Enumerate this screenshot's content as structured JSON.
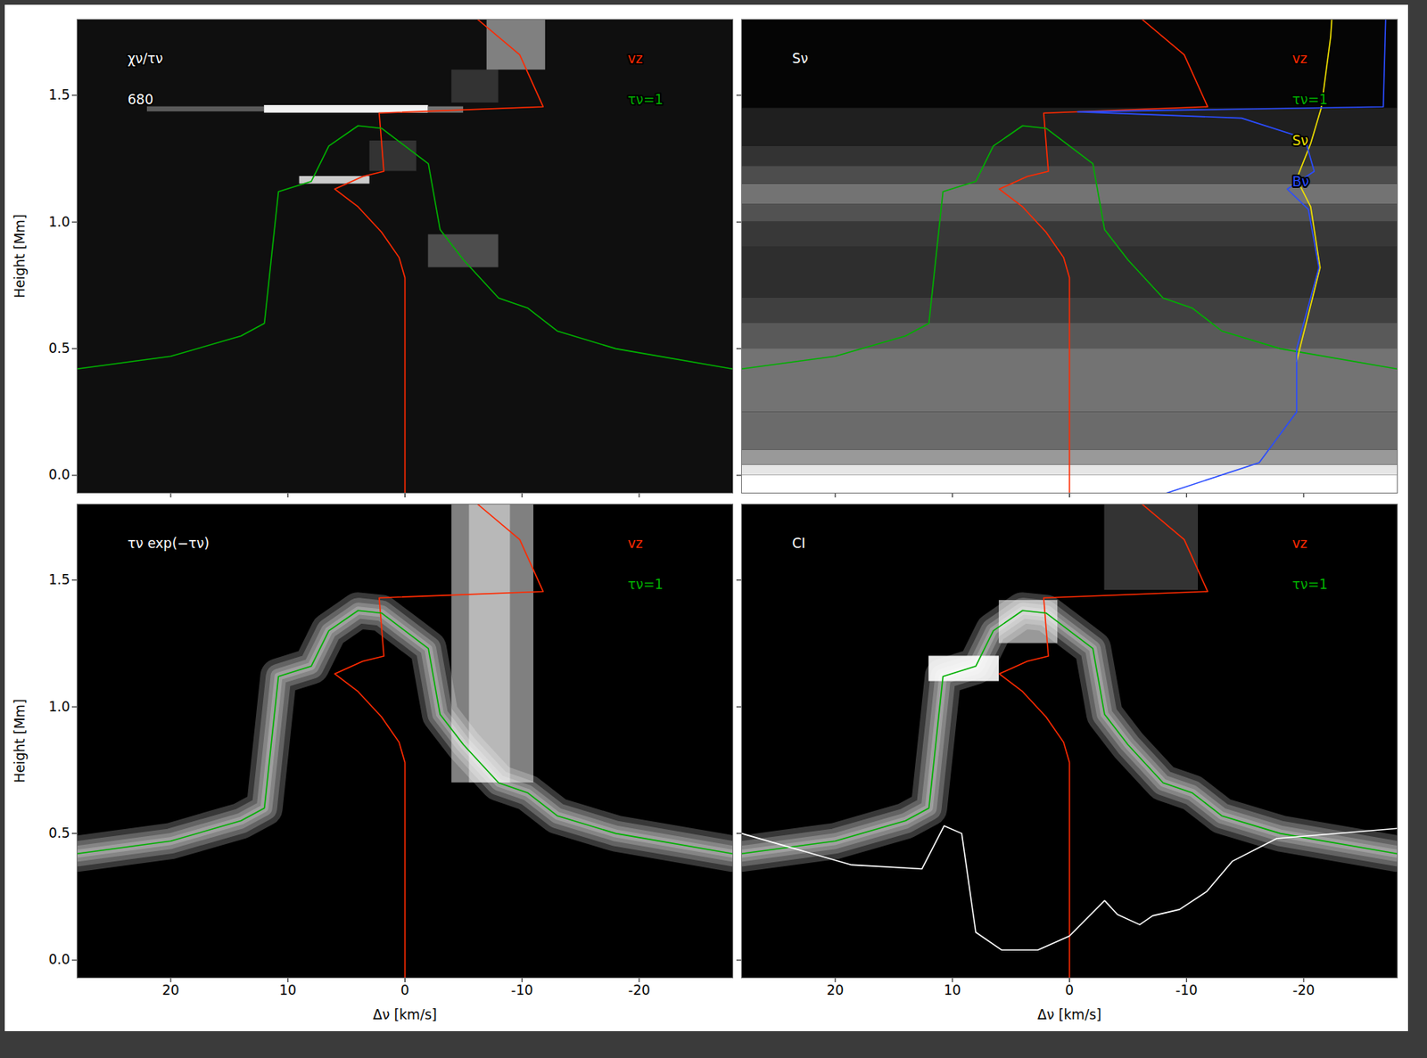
{
  "chart_data": [
    {
      "type": "line",
      "title": "χν/τν",
      "annotations": [
        "680"
      ],
      "y_label": "Height [Mm]",
      "tick_labels": "y",
      "legend": "top-right",
      "xlim": [
        28,
        -28
      ],
      "ylim": [
        -0.07,
        1.8
      ],
      "xticks": [
        20,
        10,
        0,
        -10,
        -20
      ],
      "yticks": [
        {
          "value": 0,
          "label": "0.0"
        },
        {
          "value": 0.5,
          "label": "0.5"
        },
        {
          "value": 1,
          "label": "1.0"
        },
        {
          "value": 1.5,
          "label": "1.5"
        }
      ],
      "cells": [
        {
          "x": [
            28,
            -28
          ],
          "y": [
            -0.07,
            1.8
          ],
          "value": 0.06
        },
        {
          "x": [
            22,
            12
          ],
          "y": [
            1.435,
            1.455
          ],
          "value": 0.35
        },
        {
          "x": [
            12,
            -2
          ],
          "y": [
            1.43,
            1.46
          ],
          "value": 0.95
        },
        {
          "x": [
            -2,
            -5
          ],
          "y": [
            1.43,
            1.455
          ],
          "value": 0.45
        },
        {
          "x": [
            9,
            3
          ],
          "y": [
            1.15,
            1.18
          ],
          "value": 0.8
        },
        {
          "x": [
            3,
            -1
          ],
          "y": [
            1.2,
            1.32
          ],
          "value": 0.2
        },
        {
          "x": [
            -2,
            -8
          ],
          "y": [
            0.82,
            0.95
          ],
          "value": 0.3
        },
        {
          "x": [
            -4,
            -8
          ],
          "y": [
            1.47,
            1.6
          ],
          "value": 0.2
        },
        {
          "x": [
            -7,
            -12
          ],
          "y": [
            1.6,
            1.8
          ],
          "value": 0.5
        }
      ],
      "series": [
        {
          "name": "vz",
          "color": "#ff2a00",
          "x": [
            0,
            0,
            0,
            0.5,
            2,
            4,
            6,
            3.6,
            1.8,
            2.2,
            -11.8,
            -9.8,
            -6.2
          ],
          "values": [
            -0.07,
            0.5,
            0.78,
            0.86,
            0.96,
            1.06,
            1.13,
            1.18,
            1.2,
            1.43,
            1.455,
            1.66,
            1.8
          ]
        },
        {
          "name": "τν=1",
          "color": "#00b000",
          "x": [
            28,
            20,
            14,
            12,
            10.8,
            8,
            6.5,
            4,
            2,
            0,
            -2,
            -3,
            -5,
            -8,
            -10.5,
            -13,
            -18,
            -28
          ],
          "values": [
            0.42,
            0.47,
            0.55,
            0.6,
            1.12,
            1.16,
            1.3,
            1.38,
            1.37,
            1.3,
            1.23,
            0.97,
            0.85,
            0.7,
            0.66,
            0.57,
            0.5,
            0.42
          ]
        }
      ]
    },
    {
      "type": "line",
      "title": "Sν",
      "tick_labels": false,
      "legend": "top-right",
      "xlim": [
        28,
        -28
      ],
      "ylim": [
        -0.07,
        1.8
      ],
      "xticks": [
        20,
        10,
        0,
        -10,
        -20
      ],
      "yticks": [
        {
          "value": 0,
          "label": "0.0"
        },
        {
          "value": 0.5,
          "label": "0.5"
        },
        {
          "value": 1,
          "label": "1.0"
        },
        {
          "value": 1.5,
          "label": "1.5"
        }
      ],
      "cells": [
        {
          "x": [
            28,
            -28
          ],
          "y": [
            -0.07,
            0.0
          ],
          "value": 1.0
        },
        {
          "x": [
            28,
            -28
          ],
          "y": [
            0.0,
            0.04
          ],
          "value": 0.9
        },
        {
          "x": [
            28,
            -28
          ],
          "y": [
            0.04,
            0.1
          ],
          "value": 0.6
        },
        {
          "x": [
            28,
            -28
          ],
          "y": [
            0.1,
            0.25
          ],
          "value": 0.42
        },
        {
          "x": [
            28,
            -28
          ],
          "y": [
            0.25,
            0.5
          ],
          "value": 0.45
        },
        {
          "x": [
            28,
            -28
          ],
          "y": [
            0.5,
            0.6
          ],
          "value": 0.35
        },
        {
          "x": [
            28,
            -28
          ],
          "y": [
            0.6,
            0.7
          ],
          "value": 0.25
        },
        {
          "x": [
            28,
            -28
          ],
          "y": [
            0.7,
            0.9
          ],
          "value": 0.18
        },
        {
          "x": [
            28,
            -28
          ],
          "y": [
            0.9,
            1.0
          ],
          "value": 0.22
        },
        {
          "x": [
            28,
            -28
          ],
          "y": [
            1.0,
            1.07
          ],
          "value": 0.32
        },
        {
          "x": [
            28,
            -28
          ],
          "y": [
            1.07,
            1.15
          ],
          "value": 0.45
        },
        {
          "x": [
            28,
            -28
          ],
          "y": [
            1.15,
            1.22
          ],
          "value": 0.3
        },
        {
          "x": [
            28,
            -28
          ],
          "y": [
            1.22,
            1.3
          ],
          "value": 0.2
        },
        {
          "x": [
            28,
            -28
          ],
          "y": [
            1.3,
            1.45
          ],
          "value": 0.12
        },
        {
          "x": [
            28,
            -28
          ],
          "y": [
            1.45,
            1.8
          ],
          "value": 0.02
        }
      ],
      "series": [
        {
          "name": "vz",
          "color": "#ff2a00",
          "x": [
            0,
            0,
            0,
            0.5,
            2,
            4,
            6,
            3.6,
            1.8,
            2.2,
            -11.8,
            -9.8,
            -6.2
          ],
          "values": [
            -0.07,
            0.5,
            0.78,
            0.86,
            0.96,
            1.06,
            1.13,
            1.18,
            1.2,
            1.43,
            1.455,
            1.66,
            1.8
          ]
        },
        {
          "name": "τν=1",
          "color": "#00b000",
          "x": [
            28,
            20,
            14,
            12,
            10.8,
            8,
            6.5,
            4,
            2,
            0,
            -2,
            -3,
            -5,
            -8,
            -10.5,
            -13,
            -18,
            -28
          ],
          "values": [
            0.42,
            0.47,
            0.55,
            0.6,
            1.12,
            1.16,
            1.3,
            1.38,
            1.37,
            1.3,
            1.23,
            0.97,
            0.85,
            0.7,
            0.66,
            0.57,
            0.5,
            0.42
          ]
        },
        {
          "name": "Sν",
          "color": "#f0e000",
          "x": [
            -19.4,
            -21.4,
            -20.6,
            -19.4,
            -20.6,
            -21.5,
            -22.3,
            -22.4
          ],
          "values": [
            0.45,
            0.82,
            1.06,
            1.17,
            1.31,
            1.45,
            1.73,
            1.8
          ]
        },
        {
          "name": "Bν",
          "color": "#2a4cff",
          "x": [
            -8.3,
            -16.2,
            -19.4,
            -19.4,
            -21.3,
            -20.4,
            -18.6,
            -20.9,
            -20.1,
            -14.7,
            -0.7,
            -26.8,
            -27
          ],
          "values": [
            -0.07,
            0.05,
            0.25,
            0.5,
            0.82,
            1.05,
            1.13,
            1.2,
            1.33,
            1.41,
            1.435,
            1.455,
            1.8
          ]
        }
      ]
    },
    {
      "type": "line",
      "title": "τν exp(−τν)",
      "x_label": "Δν [km/s]",
      "y_label": "Height [Mm]",
      "legend": "top-right",
      "xlim": [
        28,
        -28
      ],
      "ylim": [
        -0.07,
        1.8
      ],
      "xticks": [
        20,
        10,
        0,
        -10,
        -20
      ],
      "yticks": [
        {
          "value": 0,
          "label": "0.0"
        },
        {
          "value": 0.5,
          "label": "0.5"
        },
        {
          "value": 1,
          "label": "1.0"
        },
        {
          "value": 1.5,
          "label": "1.5"
        }
      ],
      "cells": [
        {
          "x": [
            -4,
            -11
          ],
          "y": [
            0.7,
            1.8
          ],
          "value": 0.5
        },
        {
          "x": [
            -5.5,
            -9
          ],
          "y": [
            0.7,
            1.8
          ],
          "value": 0.72
        }
      ],
      "series": [
        {
          "name": "vz",
          "color": "#ff2a00",
          "x": [
            0,
            0,
            0,
            0.5,
            2,
            4,
            6,
            3.6,
            1.8,
            2.2,
            -11.8,
            -9.8,
            -6.2
          ],
          "values": [
            -0.07,
            0.5,
            0.78,
            0.86,
            0.96,
            1.06,
            1.13,
            1.18,
            1.2,
            1.43,
            1.455,
            1.66,
            1.8
          ]
        },
        {
          "name": "τν=1",
          "color": "#00b000",
          "x": [
            28,
            20,
            14,
            12,
            10.8,
            8,
            6.5,
            4,
            2,
            0,
            -2,
            -3,
            -5,
            -8,
            -10.5,
            -13,
            -18,
            -28
          ],
          "values": [
            0.42,
            0.47,
            0.55,
            0.6,
            1.12,
            1.16,
            1.3,
            1.38,
            1.37,
            1.3,
            1.23,
            0.97,
            0.85,
            0.7,
            0.66,
            0.57,
            0.5,
            0.42
          ]
        }
      ]
    },
    {
      "type": "line",
      "title": "CI",
      "x_label": "Δν [km/s]",
      "tick_labels": "x",
      "legend": "top-right",
      "xlim": [
        28,
        -28
      ],
      "ylim": [
        -0.07,
        1.8
      ],
      "xticks": [
        20,
        10,
        0,
        -10,
        -20
      ],
      "yticks": [
        {
          "value": 0,
          "label": "0.0"
        },
        {
          "value": 0.5,
          "label": "0.5"
        },
        {
          "value": 1,
          "label": "1.0"
        },
        {
          "value": 1.5,
          "label": "1.5"
        }
      ],
      "cells": [
        {
          "x": [
            12,
            6
          ],
          "y": [
            1.1,
            1.2
          ],
          "value": 0.9
        },
        {
          "x": [
            6,
            1
          ],
          "y": [
            1.25,
            1.42
          ],
          "value": 0.6
        },
        {
          "x": [
            -3,
            -11
          ],
          "y": [
            1.46,
            1.8
          ],
          "value": 0.2
        }
      ],
      "series": [
        {
          "name": "vz",
          "color": "#ff2a00",
          "x": [
            0,
            0,
            0,
            0.5,
            2,
            4,
            6,
            3.6,
            1.8,
            2.2,
            -11.8,
            -9.8,
            -6.2
          ],
          "values": [
            -0.07,
            0.5,
            0.78,
            0.86,
            0.96,
            1.06,
            1.13,
            1.18,
            1.2,
            1.43,
            1.455,
            1.66,
            1.8
          ]
        },
        {
          "name": "τν=1",
          "color": "#00b000",
          "x": [
            28,
            20,
            14,
            12,
            10.8,
            8,
            6.5,
            4,
            2,
            0,
            -2,
            -3,
            -5,
            -8,
            -10.5,
            -13,
            -18,
            -28
          ],
          "values": [
            0.42,
            0.47,
            0.55,
            0.6,
            1.12,
            1.16,
            1.3,
            1.38,
            1.37,
            1.3,
            1.23,
            0.97,
            0.85,
            0.7,
            0.66,
            0.57,
            0.5,
            0.42
          ]
        },
        {
          "color": "#ffffff",
          "x": [
            28,
            18.6,
            12.6,
            10.7,
            9.2,
            8.0,
            5.8,
            2.7,
            0,
            -3,
            -4.1,
            -6,
            -7.1,
            -9.4,
            -11.7,
            -13.9,
            -17.7,
            -28
          ],
          "values": [
            0.5,
            0.376,
            0.36,
            0.53,
            0.5,
            0.11,
            0.04,
            0.04,
            0.095,
            0.235,
            0.18,
            0.14,
            0.175,
            0.2,
            0.27,
            0.39,
            0.48,
            0.52
          ]
        }
      ]
    }
  ]
}
